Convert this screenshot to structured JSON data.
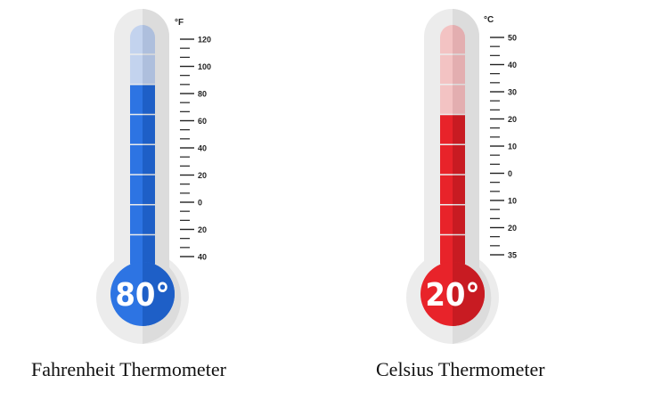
{
  "thermometers": [
    {
      "unit": "°F",
      "reading": "80°",
      "caption": "Fahrenheit Thermometer",
      "ticks": [
        "120",
        "100",
        "80",
        "60",
        "40",
        "20",
        "0",
        "20",
        "40"
      ],
      "filled_segments": 6,
      "total_segments": 8,
      "colors": {
        "fill": "#2d74e3",
        "fill_dark": "#1e5fc7",
        "faded": "#c3d3ee",
        "faded_dark": "#aebfdd",
        "bulb": "#2d74e3"
      }
    },
    {
      "unit": "°C",
      "reading": "20°",
      "caption": "Celsius Thermometer",
      "ticks": [
        "50",
        "40",
        "30",
        "20",
        "10",
        "0",
        "10",
        "20",
        "35"
      ],
      "filled_segments": 5,
      "total_segments": 8,
      "colors": {
        "fill": "#e8232a",
        "fill_dark": "#c81b22",
        "faded": "#f3c3c3",
        "faded_dark": "#e3aeb0",
        "bulb": "#e8232a"
      }
    }
  ],
  "colors": {
    "frame": "#ececec",
    "frame_shadow": "#dcdcdc",
    "tick": "#222222"
  }
}
